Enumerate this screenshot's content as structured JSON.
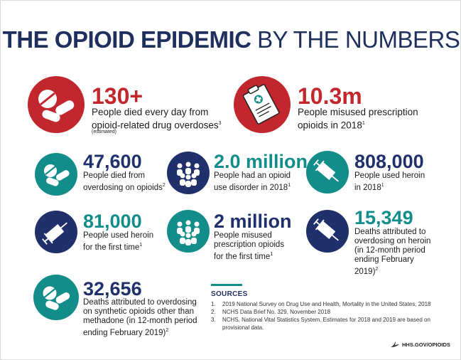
{
  "title": {
    "bold": "THE OPIOID EPIDEMIC",
    "normal": "BY THE NUMBERS"
  },
  "stats": {
    "deaths_per_day": {
      "number": "130+",
      "text": "People died every day from opioid-related drug overdoses",
      "note": "3",
      "sub": "(estimated)"
    },
    "misused_rx": {
      "number": "10.3m",
      "text": "People misused prescription opioids in 2018",
      "note": "1"
    },
    "overdose_deaths": {
      "number": "47,600",
      "text": "People died from overdosing on opioids",
      "note": "2"
    },
    "use_disorder": {
      "number": "2.0 million",
      "text": "People had an opioid use disorder in 2018",
      "note": "1"
    },
    "heroin_users": {
      "number": "808,000",
      "text": "People used heroin in 2018",
      "note": "1"
    },
    "heroin_first": {
      "number": "81,000",
      "text": "People used heroin for the first time",
      "note": "1"
    },
    "rx_first": {
      "number": "2 million",
      "text": "People misused prescription opioids for the first time",
      "note": "1"
    },
    "heroin_deaths": {
      "number": "15,349",
      "text": "Deaths attributed to overdosing on heroin (in 12-month period ending February 2019)",
      "note": "2"
    },
    "synthetic_deaths": {
      "number": "32,656",
      "text": "Deaths attributed to overdosing on synthetic opioids other than methadone (in 12-month period ending February 2019)",
      "note": "2"
    }
  },
  "sources": {
    "heading": "SOURCES",
    "items": [
      {
        "n": "1.",
        "text": "2019 National Survey on Drug Use and Health, Mortality in the United States, 2018"
      },
      {
        "n": "2.",
        "text": "NCHS Data Brief No. 329, November 2018"
      },
      {
        "n": "3.",
        "text": "NCHS, National Vital Statistics System. Estimates for 2018 and 2019 are based on provisional data."
      }
    ]
  },
  "footer": {
    "site": "HHS.GOV/OPIOIDS"
  },
  "colors": {
    "red": "#c1272d",
    "teal": "#138d8a",
    "navy": "#20306a"
  },
  "icons": [
    "pills-icon",
    "clipboard-prescription-icon",
    "people-group-icon",
    "syringe-icon",
    "hhs-eagle-logo"
  ]
}
